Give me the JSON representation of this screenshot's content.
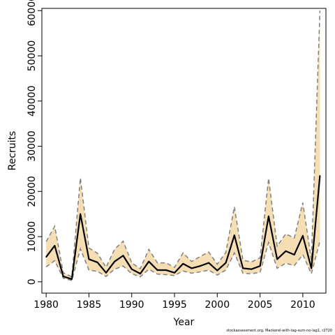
{
  "chart_data": {
    "type": "line",
    "title": "",
    "xlabel": "Year",
    "ylabel": "Recruits",
    "xlim": [
      1979.5,
      2012.7
    ],
    "ylim": [
      -2500,
      60500
    ],
    "x_ticks": [
      1980,
      1985,
      1990,
      1995,
      2000,
      2005,
      2010
    ],
    "y_ticks": [
      0,
      10000,
      20000,
      30000,
      40000,
      50000,
      60000
    ],
    "grid": false,
    "legend": "none",
    "colors": {
      "estimate": "#000000",
      "band": "#f5deb3",
      "bounds": "#808080"
    },
    "x": [
      1980,
      1981,
      1982,
      1983,
      1984,
      1985,
      1986,
      1987,
      1988,
      1989,
      1990,
      1991,
      1992,
      1993,
      1994,
      1995,
      1996,
      1997,
      1998,
      1999,
      2000,
      2001,
      2002,
      2003,
      2004,
      2005,
      2006,
      2007,
      2008,
      2009,
      2010,
      2011,
      2012
    ],
    "series": [
      {
        "values": [
          5500,
          8000,
          1200,
          600,
          15000,
          5000,
          4300,
          2000,
          4500,
          5800,
          2800,
          1800,
          4500,
          2600,
          2600,
          2000,
          4000,
          3000,
          3500,
          4200,
          2500,
          4200,
          10300,
          3000,
          2800,
          3500,
          14500,
          5000,
          6800,
          6000,
          10200,
          3000,
          23500
        ]
      },
      {
        "values": [
          3300,
          4700,
          800,
          300,
          7300,
          2600,
          2300,
          1200,
          2800,
          3500,
          1800,
          1100,
          2800,
          1700,
          1600,
          1400,
          2400,
          1900,
          2200,
          2600,
          1500,
          2600,
          6400,
          1900,
          1800,
          2100,
          8700,
          3000,
          4100,
          3600,
          6000,
          1800,
          9000
        ]
      },
      {
        "values": [
          8900,
          12300,
          2000,
          1100,
          23000,
          7500,
          6300,
          3200,
          7200,
          9000,
          4200,
          2900,
          7200,
          4200,
          4200,
          3200,
          6400,
          4500,
          5600,
          6600,
          3900,
          6500,
          16600,
          4800,
          4400,
          5300,
          22900,
          7900,
          10600,
          9700,
          17500,
          4800,
          60000
        ]
      }
    ],
    "footnote": "stockassessment.org, Mackerel-with-tag-sum-no-lag1, r2720"
  }
}
